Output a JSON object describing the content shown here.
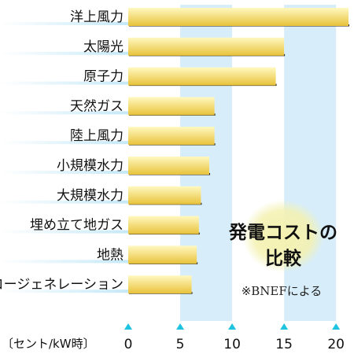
{
  "chart_data": {
    "type": "bar",
    "orientation": "horizontal",
    "title_lines": [
      "発電コストの",
      "比較"
    ],
    "source": "※BNEFによる",
    "unit_label": "〔セント/kW時〕",
    "categories": [
      "洋上風力",
      "太陽光",
      "原子力",
      "天然ガス",
      "陸上風力",
      "小規模水力",
      "大規模水力",
      "埋め立て地ガス",
      "地熱",
      "コージェネレーション"
    ],
    "values": [
      21.2,
      15.0,
      14.2,
      8.3,
      8.3,
      7.8,
      7.0,
      6.8,
      6.6,
      6.1
    ],
    "xlim": [
      0,
      21.2
    ],
    "xticks": [
      0,
      5,
      10,
      15,
      20
    ],
    "xtick_labels": [
      "0",
      "5",
      "10",
      "15",
      "20"
    ],
    "colors": {
      "bar_top": "#fff8c0",
      "bar_bottom": "#e8c23a",
      "bar_shadow": "#222222",
      "band": "#d7eefa",
      "marker": "#1ec3e0",
      "label_fade": "#bfe6f6",
      "title_bubble": "#f4f1b0"
    }
  }
}
